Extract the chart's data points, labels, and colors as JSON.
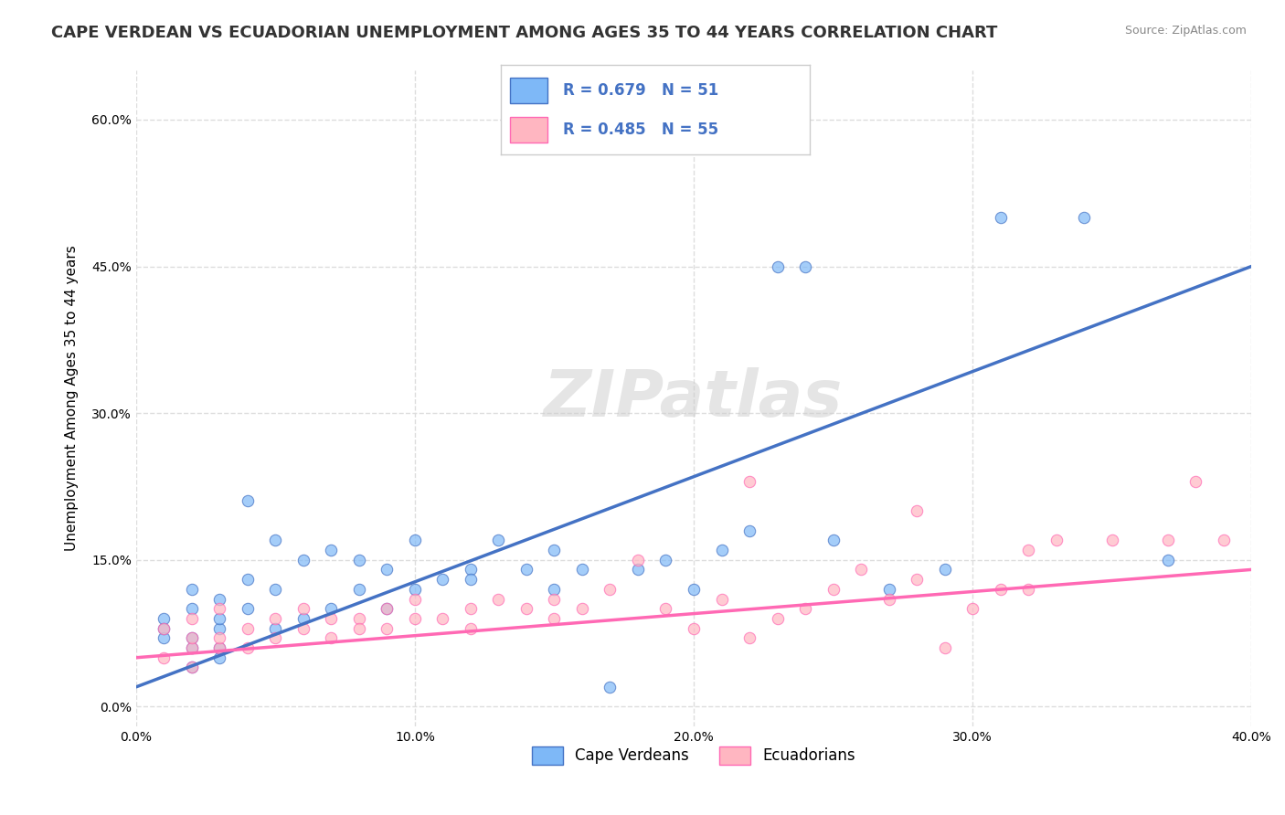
{
  "title": "CAPE VERDEAN VS ECUADORIAN UNEMPLOYMENT AMONG AGES 35 TO 44 YEARS CORRELATION CHART",
  "source": "Source: ZipAtlas.com",
  "xlabel": "",
  "ylabel": "Unemployment Among Ages 35 to 44 years",
  "xlim": [
    0.0,
    0.4
  ],
  "ylim": [
    -0.02,
    0.65
  ],
  "xticks": [
    0.0,
    0.1,
    0.2,
    0.3,
    0.4
  ],
  "yticks": [
    0.0,
    0.15,
    0.3,
    0.45,
    0.6
  ],
  "xtick_labels": [
    "0.0%",
    "10.0%",
    "20.0%",
    "30.0%",
    "40.0%"
  ],
  "ytick_labels": [
    "0.0%",
    "15.0%",
    "30.0%",
    "45.0%",
    "60.0%"
  ],
  "blue_R": "0.679",
  "blue_N": "51",
  "pink_R": "0.485",
  "pink_N": "55",
  "blue_color": "#7EB8F7",
  "blue_line_color": "#4472C4",
  "pink_color": "#FFB6C1",
  "pink_line_color": "#FF69B4",
  "legend_label_blue": "Cape Verdeans",
  "legend_label_pink": "Ecuadorians",
  "watermark": "ZIPatlas",
  "blue_scatter_x": [
    0.01,
    0.01,
    0.01,
    0.02,
    0.02,
    0.02,
    0.02,
    0.02,
    0.03,
    0.03,
    0.03,
    0.03,
    0.03,
    0.04,
    0.04,
    0.04,
    0.05,
    0.05,
    0.05,
    0.06,
    0.06,
    0.07,
    0.07,
    0.08,
    0.08,
    0.09,
    0.09,
    0.1,
    0.1,
    0.11,
    0.12,
    0.12,
    0.13,
    0.14,
    0.15,
    0.15,
    0.16,
    0.17,
    0.18,
    0.19,
    0.2,
    0.21,
    0.22,
    0.23,
    0.24,
    0.25,
    0.27,
    0.29,
    0.31,
    0.34,
    0.37
  ],
  "blue_scatter_y": [
    0.07,
    0.09,
    0.08,
    0.04,
    0.07,
    0.1,
    0.12,
    0.06,
    0.05,
    0.08,
    0.11,
    0.06,
    0.09,
    0.21,
    0.1,
    0.13,
    0.08,
    0.12,
    0.17,
    0.09,
    0.15,
    0.1,
    0.16,
    0.12,
    0.15,
    0.1,
    0.14,
    0.12,
    0.17,
    0.13,
    0.14,
    0.13,
    0.17,
    0.14,
    0.12,
    0.16,
    0.14,
    0.02,
    0.14,
    0.15,
    0.12,
    0.16,
    0.18,
    0.45,
    0.45,
    0.17,
    0.12,
    0.14,
    0.5,
    0.5,
    0.15
  ],
  "pink_scatter_x": [
    0.01,
    0.01,
    0.02,
    0.02,
    0.02,
    0.02,
    0.03,
    0.03,
    0.03,
    0.04,
    0.04,
    0.05,
    0.05,
    0.06,
    0.06,
    0.07,
    0.07,
    0.08,
    0.08,
    0.09,
    0.09,
    0.1,
    0.1,
    0.11,
    0.12,
    0.12,
    0.13,
    0.14,
    0.15,
    0.15,
    0.16,
    0.17,
    0.18,
    0.19,
    0.2,
    0.21,
    0.22,
    0.23,
    0.24,
    0.25,
    0.26,
    0.27,
    0.28,
    0.29,
    0.3,
    0.31,
    0.32,
    0.33,
    0.35,
    0.37,
    0.39,
    0.38,
    0.32,
    0.28,
    0.22
  ],
  "pink_scatter_y": [
    0.05,
    0.08,
    0.04,
    0.06,
    0.09,
    0.07,
    0.06,
    0.07,
    0.1,
    0.08,
    0.06,
    0.07,
    0.09,
    0.08,
    0.1,
    0.09,
    0.07,
    0.09,
    0.08,
    0.1,
    0.08,
    0.09,
    0.11,
    0.09,
    0.1,
    0.08,
    0.11,
    0.1,
    0.09,
    0.11,
    0.1,
    0.12,
    0.15,
    0.1,
    0.08,
    0.11,
    0.23,
    0.09,
    0.1,
    0.12,
    0.14,
    0.11,
    0.13,
    0.06,
    0.1,
    0.12,
    0.12,
    0.17,
    0.17,
    0.17,
    0.17,
    0.23,
    0.16,
    0.2,
    0.07
  ],
  "blue_line_x": [
    0.0,
    0.4
  ],
  "blue_line_y": [
    0.02,
    0.45
  ],
  "pink_line_x": [
    0.0,
    0.4
  ],
  "pink_line_y": [
    0.05,
    0.14
  ],
  "background_color": "#FFFFFF",
  "grid_color": "#DDDDDD",
  "title_fontsize": 13,
  "axis_label_fontsize": 11,
  "tick_fontsize": 10,
  "legend_fontsize": 12
}
